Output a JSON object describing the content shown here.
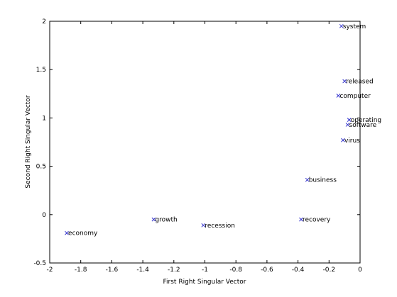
{
  "chart_data": {
    "type": "scatter",
    "title": "",
    "xlabel": "First Right Singular Vector",
    "ylabel": "Second Right Singular Vector",
    "xlim": [
      -2,
      0
    ],
    "ylim": [
      -0.5,
      2
    ],
    "xticks": [
      -2,
      -1.8,
      -1.6,
      -1.4,
      -1.2,
      -1,
      -0.8,
      -0.6,
      -0.4,
      -0.2,
      0
    ],
    "xtick_labels": [
      "-2",
      "-1.8",
      "-1.6",
      "-1.4",
      "-1.2",
      "-1",
      "-0.8",
      "-0.6",
      "-0.4",
      "-0.2",
      "0"
    ],
    "yticks": [
      -0.5,
      0,
      0.5,
      1,
      1.5,
      2
    ],
    "ytick_labels": [
      "-0.5",
      "0",
      "0.5",
      "1",
      "1.5",
      "2"
    ],
    "grid": false,
    "marker": "x",
    "marker_color": "#3333cc",
    "points": [
      {
        "label": "system",
        "x": -0.12,
        "y": 1.95
      },
      {
        "label": "released",
        "x": -0.1,
        "y": 1.38
      },
      {
        "label": "computer",
        "x": -0.14,
        "y": 1.23
      },
      {
        "label": "operating",
        "x": -0.07,
        "y": 0.98
      },
      {
        "label": "software",
        "x": -0.08,
        "y": 0.93
      },
      {
        "label": "virus",
        "x": -0.11,
        "y": 0.77
      },
      {
        "label": "business",
        "x": -0.34,
        "y": 0.36
      },
      {
        "label": "recovery",
        "x": -0.38,
        "y": -0.05
      },
      {
        "label": "growth",
        "x": -1.33,
        "y": -0.05
      },
      {
        "label": "recession",
        "x": -1.01,
        "y": -0.11
      },
      {
        "label": "economy",
        "x": -1.89,
        "y": -0.19
      }
    ]
  }
}
